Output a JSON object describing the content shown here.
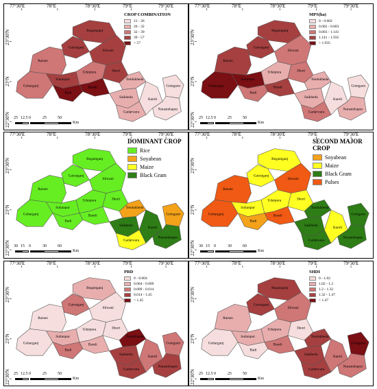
{
  "axes": {
    "lon_labels": [
      "77°30'E",
      "78°E",
      "78°30'E",
      "79°E",
      "79°30'E"
    ],
    "lat_labels": [
      "23°30'N",
      "23°N",
      "22°30'N"
    ]
  },
  "districts": [
    "Raisen",
    "Begamganj",
    "Gairatganj",
    "Silwani",
    "Goharganj",
    "Sultanpur",
    "Udaipura",
    "Deori",
    "Baraili",
    "Badi",
    "Tendukheda",
    "Sukhedi",
    "Gadarwara",
    "Kareli",
    "Gotegaon",
    "Narsinghpur"
  ],
  "panels": [
    {
      "id": "crop-combination",
      "legend_title": "CROP COMBINATION",
      "classes": [
        {
          "label": "21 - 26",
          "color": "#f6dede"
        },
        {
          "label": "26 - 32",
          "color": "#e8aeae"
        },
        {
          "label": "32 - 39",
          "color": "#cf7676"
        },
        {
          "label": "39 - 57",
          "color": "#a64040"
        },
        {
          "label": "> 57",
          "color": "#7a0f14"
        }
      ],
      "scale_labels": [
        "25",
        "12.5",
        "0",
        "25",
        "50"
      ],
      "scale_unit": "Km",
      "district_class": [
        2,
        3,
        3,
        3,
        2,
        3,
        2,
        3,
        4,
        4,
        1,
        1,
        1,
        0,
        0,
        0
      ],
      "labels": [
        "Raisen",
        "Begamganj",
        "Gairatganj",
        "Silwani",
        "Goharganj",
        "Sultanpur",
        "Udaipura",
        "Deori",
        "Barali",
        "Badi",
        "Tendukheda",
        "Saikheda",
        "Gadarwara",
        "Kareli",
        "Gotegaon",
        "Narasinhapur"
      ]
    },
    {
      "id": "mps",
      "legend_title": "MPS(ha)",
      "classes": [
        {
          "label": "0 - 0.002",
          "color": "#f6dede"
        },
        {
          "label": "0.002 - 0.003",
          "color": "#e8aeae"
        },
        {
          "label": "0.003 - 1.141",
          "color": "#cf7676"
        },
        {
          "label": "1.141 - 1.935",
          "color": "#a64040"
        },
        {
          "label": "> 1.935",
          "color": "#7a0f14"
        }
      ],
      "scale_labels": [
        "25",
        "12.5",
        "0",
        "25",
        "50"
      ],
      "scale_unit": "Km",
      "district_class": [
        3,
        3,
        3,
        2,
        4,
        4,
        1,
        2,
        3,
        2,
        1,
        1,
        2,
        0,
        0,
        1
      ],
      "labels": [
        "Raisen",
        "Begamganj",
        "Gairatganj",
        "Silwani",
        "Goharganj",
        "Sultanpur",
        "Udaipura",
        "Deori",
        "Barali",
        "Badi",
        "Tendukheda",
        "Saikheda",
        "Gadarwara",
        "Kareli",
        "Gotegaon",
        "Narasinhapur"
      ]
    },
    {
      "id": "dominant-crop",
      "legend_title": "DOMINANT CROP",
      "large": true,
      "classes": [
        {
          "label": "Rice",
          "color": "#66ee22"
        },
        {
          "label": "Soyabean",
          "color": "#f3a21a"
        },
        {
          "label": "Maize",
          "color": "#ffff22"
        },
        {
          "label": "Black Gram",
          "color": "#2e7d16"
        }
      ],
      "scale_labels": [
        "30",
        "15",
        "0",
        "30",
        "60"
      ],
      "scale_unit": "Km",
      "district_class": [
        0,
        0,
        0,
        0,
        0,
        0,
        0,
        0,
        0,
        0,
        1,
        3,
        2,
        3,
        1,
        3
      ],
      "labels": [
        "Raisen",
        "Begamganj",
        "Gairatganj",
        "Silwani",
        "Goharganj",
        "Sultanpur",
        "Udaipura",
        "Deori",
        "Bareli",
        "Badi",
        "Tendukheda",
        "Saikheda",
        "Gadarwara",
        "Kareli",
        "Gotegaon",
        "Narasinhapur"
      ]
    },
    {
      "id": "second-major-crop",
      "legend_title": "SECOND MAJOR CROP",
      "large": true,
      "classes": [
        {
          "label": "Soyabean",
          "color": "#f3a21a"
        },
        {
          "label": "Maize",
          "color": "#ffff22"
        },
        {
          "label": "Black Gram",
          "color": "#2e7d16"
        },
        {
          "label": "Pulses",
          "color": "#f05a14"
        }
      ],
      "scale_labels": [
        "30",
        "15",
        "0",
        "30",
        "60"
      ],
      "scale_unit": "Km",
      "district_class": [
        3,
        1,
        1,
        3,
        3,
        1,
        1,
        1,
        3,
        0,
        2,
        2,
        2,
        1,
        2,
        2
      ],
      "labels": [
        "Raisen",
        "Begamganj",
        "Gairatganj",
        "Silwani",
        "Goharganj",
        "Sultanpur",
        "Udaipura",
        "Deori",
        "Bareli",
        "Badi",
        "Tendukheda",
        "Saikheda",
        "Gadarwara",
        "Kareli",
        "Gotegaon",
        "Narasinhapur"
      ]
    },
    {
      "id": "prd",
      "legend_title": "PRD",
      "classes": [
        {
          "label": "0 - 0.004",
          "color": "#f6dede"
        },
        {
          "label": "0.004 - 0.009",
          "color": "#e8aeae"
        },
        {
          "label": "0.009 - 0.014",
          "color": "#cf7676"
        },
        {
          "label": "0.014 - 1.45",
          "color": "#a64040"
        },
        {
          "label": "> 1.45",
          "color": "#7a0f14"
        }
      ],
      "scale_labels": [
        "25",
        "12.5",
        "0",
        "25",
        "50"
      ],
      "scale_unit": "Km",
      "district_class": [
        0,
        1,
        2,
        0,
        0,
        1,
        0,
        0,
        1,
        2,
        4,
        3,
        3,
        2,
        2,
        3
      ],
      "labels": [
        "Raisen",
        "Begamganj",
        "Gairatganj",
        "Silwani",
        "Goharganj",
        "Sultanpur",
        "Udaipura",
        "Deori",
        "Bareli",
        "Badi",
        "Tendukheda",
        "Saikheda",
        "Gadarwara",
        "Kareli",
        "Gotegaon",
        "Narasinhapur"
      ]
    },
    {
      "id": "shdi",
      "legend_title": "SHDI",
      "classes": [
        {
          "label": "0 - 1.02",
          "color": "#f6dede"
        },
        {
          "label": "1.02 - 1.2",
          "color": "#e8aeae"
        },
        {
          "label": "1.2 - 1.32",
          "color": "#cf7676"
        },
        {
          "label": "1.32 - 1.47",
          "color": "#a64040"
        },
        {
          "label": "> 1.47",
          "color": "#7a0f14"
        }
      ],
      "scale_labels": [
        "25",
        "12.5",
        "0",
        "25",
        "50"
      ],
      "scale_unit": "Km",
      "district_class": [
        1,
        3,
        3,
        2,
        0,
        1,
        1,
        0,
        2,
        0,
        3,
        3,
        3,
        2,
        4,
        2
      ],
      "labels": [
        "Raisen",
        "Begamganj",
        "Gairatganj",
        "Silwani",
        "Goharganj",
        "Sultanpur",
        "Udaipura",
        "Deori",
        "Bareli",
        "Badi",
        "Tendukheda",
        "Saikheda",
        "Gadarwara",
        "Kareli",
        "Gotegaon",
        "Narasinhapur"
      ]
    }
  ]
}
